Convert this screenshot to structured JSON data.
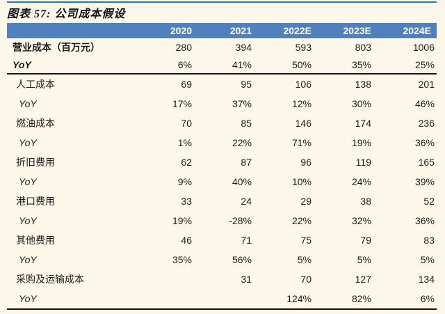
{
  "figure": {
    "title": "图表 57: 公司成本假设"
  },
  "colors": {
    "background": "#FDF7E9",
    "header_bar": "#4E81BD",
    "header_text": "#FFFFFF",
    "top_rule": "#2577B2",
    "table_rule": "#141414",
    "body_text": "#1A1A1A"
  },
  "chart_data": {
    "type": "table",
    "title": "图表 57: 公司成本假设",
    "columns": [
      "",
      "2020",
      "2021",
      "2022E",
      "2023E",
      "2024E"
    ],
    "rows": [
      [
        "营业成本（百万元）",
        "280",
        "394",
        "593",
        "803",
        "1006"
      ],
      [
        "YoY",
        "6%",
        "41%",
        "50%",
        "35%",
        "25%"
      ],
      [
        "人工成本",
        "69",
        "95",
        "106",
        "138",
        "201"
      ],
      [
        "YoY",
        "17%",
        "37%",
        "12%",
        "30%",
        "46%"
      ],
      [
        "燃油成本",
        "70",
        "85",
        "146",
        "174",
        "236"
      ],
      [
        "YoY",
        "1%",
        "22%",
        "71%",
        "19%",
        "36%"
      ],
      [
        "折旧费用",
        "62",
        "87",
        "96",
        "119",
        "165"
      ],
      [
        "YoY",
        "9%",
        "40%",
        "10%",
        "24%",
        "39%"
      ],
      [
        "港口费用",
        "33",
        "24",
        "29",
        "38",
        "52"
      ],
      [
        "YoY",
        "19%",
        "-28%",
        "22%",
        "32%",
        "36%"
      ],
      [
        "其他费用",
        "46",
        "71",
        "75",
        "79",
        "83"
      ],
      [
        "YoY",
        "35%",
        "56%",
        "5%",
        "5%",
        "5%"
      ],
      [
        "采购及运输成本",
        "",
        "31",
        "70",
        "127",
        "134"
      ],
      [
        "YoY",
        "",
        "",
        "124%",
        "82%",
        "6%"
      ]
    ]
  }
}
